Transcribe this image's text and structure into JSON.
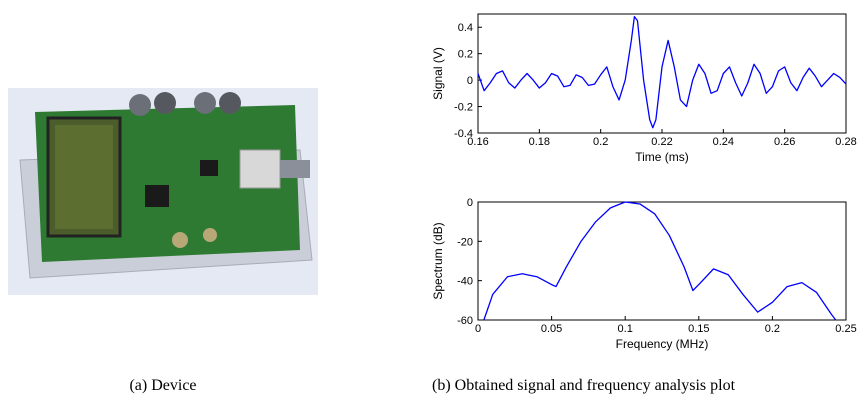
{
  "captions": [
    "(a) Device",
    "(b) Obtained signal and frequency analysis plot"
  ],
  "chart_data": [
    {
      "type": "line",
      "xlabel": "Time (ms)",
      "ylabel": "Signal (V)",
      "color": "#0000ff",
      "xlim": [
        0.16,
        0.28
      ],
      "ylim": [
        -0.4,
        0.5
      ],
      "xticks": [
        0.16,
        0.18,
        0.2,
        0.22,
        0.24,
        0.26,
        0.28
      ],
      "yticks": [
        -0.4,
        -0.2,
        0,
        0.2,
        0.4
      ],
      "x": [
        0.16,
        0.162,
        0.164,
        0.166,
        0.168,
        0.17,
        0.172,
        0.174,
        0.176,
        0.178,
        0.18,
        0.182,
        0.184,
        0.186,
        0.188,
        0.19,
        0.192,
        0.194,
        0.196,
        0.198,
        0.2,
        0.202,
        0.204,
        0.206,
        0.208,
        0.21,
        0.211,
        0.212,
        0.214,
        0.216,
        0.217,
        0.218,
        0.22,
        0.222,
        0.224,
        0.226,
        0.228,
        0.23,
        0.232,
        0.234,
        0.236,
        0.238,
        0.24,
        0.242,
        0.244,
        0.246,
        0.248,
        0.25,
        0.252,
        0.254,
        0.256,
        0.258,
        0.26,
        0.262,
        0.264,
        0.266,
        0.268,
        0.27,
        0.272,
        0.274,
        0.276,
        0.278,
        0.28
      ],
      "values": [
        0.05,
        -0.08,
        -0.02,
        0.05,
        0.07,
        -0.02,
        -0.06,
        0.0,
        0.05,
        0.0,
        -0.06,
        -0.02,
        0.05,
        0.03,
        -0.05,
        -0.04,
        0.04,
        0.02,
        -0.04,
        -0.03,
        0.04,
        0.1,
        -0.05,
        -0.15,
        0.0,
        0.3,
        0.48,
        0.45,
        0.0,
        -0.3,
        -0.36,
        -0.3,
        0.1,
        0.3,
        0.1,
        -0.15,
        -0.2,
        0.0,
        0.12,
        0.05,
        -0.1,
        -0.08,
        0.05,
        0.1,
        -0.02,
        -0.12,
        -0.02,
        0.12,
        0.05,
        -0.1,
        -0.05,
        0.07,
        0.1,
        -0.02,
        -0.08,
        0.02,
        0.09,
        0.03,
        -0.05,
        0.0,
        0.05,
        0.02,
        -0.03
      ]
    },
    {
      "type": "line",
      "xlabel": "Frequency (MHz)",
      "ylabel": "Spectrum (dB)",
      "color": "#0000ff",
      "xlim": [
        0,
        0.25
      ],
      "ylim": [
        -60,
        0
      ],
      "xticks": [
        0,
        0.05,
        0.1,
        0.15,
        0.2,
        0.25
      ],
      "yticks": [
        -60,
        -40,
        -20,
        0
      ],
      "x": [
        0.004,
        0.01,
        0.02,
        0.03,
        0.04,
        0.05,
        0.053,
        0.06,
        0.07,
        0.08,
        0.09,
        0.1,
        0.11,
        0.12,
        0.13,
        0.14,
        0.146,
        0.15,
        0.16,
        0.17,
        0.18,
        0.19,
        0.2,
        0.21,
        0.22,
        0.23,
        0.24,
        0.243
      ],
      "values": [
        -60,
        -47,
        -38,
        -36.5,
        -38,
        -42,
        -43,
        -33,
        -20,
        -10,
        -3,
        0,
        -1,
        -6,
        -17,
        -33,
        -45,
        -42,
        -34,
        -37,
        -47,
        -56,
        -51,
        -43,
        -41,
        -46,
        -57,
        -60
      ]
    }
  ]
}
